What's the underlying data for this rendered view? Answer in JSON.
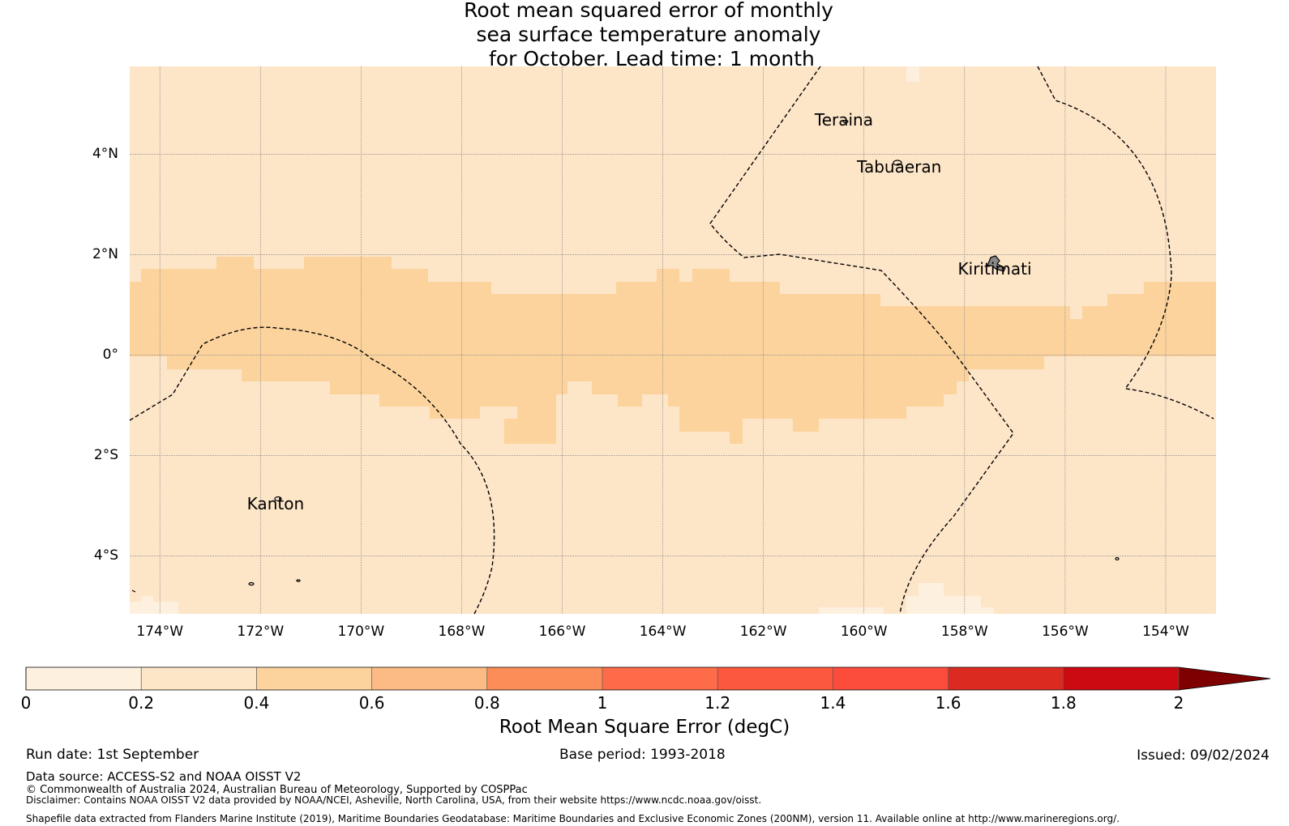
{
  "title": {
    "line1": "Root mean squared error of monthly",
    "line2": "sea surface temperature anomaly",
    "line3": " for October. Lead time: 1 month"
  },
  "map": {
    "extent": {
      "lon_min": -174.6,
      "lon_max": -153.0,
      "lat_min": -5.15,
      "lat_max": 5.75
    },
    "lat_ticks": [
      {
        "value": 4,
        "label": "4°N"
      },
      {
        "value": 2,
        "label": "2°N"
      },
      {
        "value": 0,
        "label": "0°"
      },
      {
        "value": -2,
        "label": "2°S"
      },
      {
        "value": -4,
        "label": "4°S"
      }
    ],
    "lon_ticks": [
      {
        "value": -174,
        "label": "174°W"
      },
      {
        "value": -172,
        "label": "172°W"
      },
      {
        "value": -170,
        "label": "170°W"
      },
      {
        "value": -168,
        "label": "168°W"
      },
      {
        "value": -166,
        "label": "166°W"
      },
      {
        "value": -164,
        "label": "164°W"
      },
      {
        "value": -162,
        "label": "162°W"
      },
      {
        "value": -160,
        "label": "160°W"
      },
      {
        "value": -158,
        "label": "158°W"
      },
      {
        "value": -156,
        "label": "156°W"
      },
      {
        "value": -154,
        "label": "154°W"
      }
    ],
    "places": [
      {
        "name": "Teraina",
        "lon": -160.4,
        "lat": 4.68
      },
      {
        "name": "Tabuaeran",
        "lon": -159.3,
        "lat": 3.75
      },
      {
        "name": "Kiritimati",
        "lon": -157.4,
        "lat": 1.72
      },
      {
        "name": "Kanton",
        "lon": -171.7,
        "lat": -2.95
      }
    ],
    "rmse_band": {
      "level_bin": "0.4–0.6",
      "lat_north": 1.6,
      "lat_south": -1.6
    },
    "background_bin": "0.2–0.4",
    "lowest_bin_patches": "0–0.2"
  },
  "colorbar": {
    "title": "Root Mean Square Error (degC)",
    "ticks": [
      "0",
      "0.2",
      "0.4",
      "0.6",
      "0.8",
      "1",
      "1.2",
      "1.4",
      "1.6",
      "1.8",
      "2"
    ],
    "colors": [
      "#fef0df",
      "#fde5c8",
      "#fcd39d",
      "#fcbb84",
      "#fc8d58",
      "#fd6b48",
      "#fc583e",
      "#fc4d3c",
      "#db2b20",
      "#cb0a12",
      "#b0000b"
    ],
    "extend_color": "#7f0000"
  },
  "footer": {
    "run_date": "Run date: 1st September",
    "base_period": "Base period: 1993-2018",
    "issued": "Issued: 09/02/2024",
    "data_source": "Data source: ACCESS-S2 and NOAA OISST V2",
    "copyright": "© Commonwealth of Australia 2024, Australian Bureau of Meteorology, Supported by COSPPac",
    "disclaimer": "Disclaimer: Contains NOAA OISST V2 data provided by NOAA/NCEI, Asheville, North Carolina, USA, from their website https://www.ncdc.noaa.gov/oisst.",
    "shapefile": "Shapefile data extracted from Flanders Marine Institute (2019), Maritime Boundaries Geodatabase: Maritime Boundaries and Exclusive Economic Zones (200NM), version 11. Available online at http://www.marineregions.org/."
  }
}
